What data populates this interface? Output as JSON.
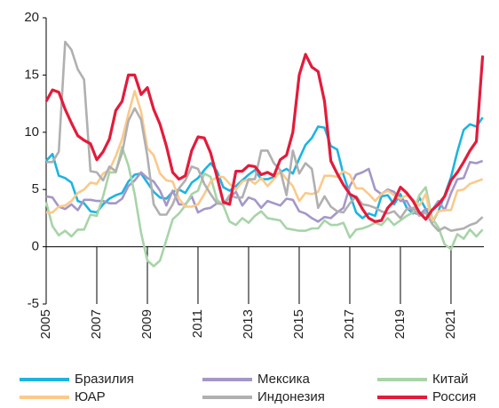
{
  "chart_data": {
    "type": "line",
    "x": [
      2005,
      2005.25,
      2005.5,
      2005.75,
      2006,
      2006.25,
      2006.5,
      2006.75,
      2007,
      2007.25,
      2007.5,
      2007.75,
      2008,
      2008.25,
      2008.5,
      2008.75,
      2009,
      2009.25,
      2009.5,
      2009.75,
      2010,
      2010.25,
      2010.5,
      2010.75,
      2011,
      2011.25,
      2011.5,
      2011.75,
      2012,
      2012.25,
      2012.5,
      2012.75,
      2013,
      2013.25,
      2013.5,
      2013.75,
      2014,
      2014.25,
      2014.5,
      2014.75,
      2015,
      2015.25,
      2015.5,
      2015.75,
      2016,
      2016.25,
      2016.5,
      2016.75,
      2017,
      2017.25,
      2017.5,
      2017.75,
      2018,
      2018.25,
      2018.5,
      2018.75,
      2019,
      2019.25,
      2019.5,
      2019.75,
      2020,
      2020.25,
      2020.5,
      2020.75,
      2021,
      2021.25,
      2021.5,
      2021.75,
      2022,
      2022.25
    ],
    "series": [
      {
        "name": "Бразилия",
        "color": "#1cb5e0",
        "values": [
          7.5,
          8.1,
          6.2,
          6.0,
          5.6,
          4.0,
          3.8,
          3.1,
          3.0,
          3.7,
          4.2,
          4.5,
          4.7,
          5.7,
          6.3,
          6.4,
          5.6,
          4.8,
          4.3,
          4.2,
          4.8,
          5.0,
          4.7,
          5.6,
          6.0,
          6.7,
          7.3,
          6.6,
          5.2,
          4.9,
          5.3,
          5.8,
          6.3,
          6.7,
          5.9,
          5.9,
          6.1,
          6.5,
          6.8,
          6.4,
          7.7,
          8.9,
          9.5,
          10.5,
          10.4,
          8.8,
          8.5,
          6.3,
          4.6,
          3.0,
          2.5,
          2.9,
          2.7,
          4.4,
          4.5,
          3.7,
          4.6,
          3.4,
          2.9,
          4.3,
          3.3,
          2.1,
          3.1,
          4.5,
          6.1,
          8.3,
          10.2,
          10.7,
          10.5,
          11.3
        ]
      },
      {
        "name": "Мексика",
        "color": "#a597c8",
        "values": [
          4.4,
          4.3,
          3.5,
          3.3,
          3.7,
          3.2,
          4.1,
          4.1,
          4.0,
          4.0,
          3.8,
          3.8,
          4.2,
          5.3,
          5.8,
          6.5,
          6.0,
          5.7,
          4.9,
          3.6,
          4.9,
          3.7,
          3.7,
          4.4,
          3.0,
          3.3,
          3.4,
          3.8,
          3.7,
          4.3,
          4.8,
          3.6,
          4.3,
          4.1,
          3.4,
          4.0,
          3.8,
          3.6,
          4.2,
          4.1,
          3.1,
          2.9,
          2.5,
          2.2,
          2.6,
          2.5,
          3.0,
          3.4,
          5.3,
          6.3,
          6.5,
          6.8,
          5.0,
          4.6,
          5.0,
          4.8,
          4.0,
          4.0,
          3.0,
          2.8,
          3.3,
          3.2,
          4.0,
          3.2,
          4.7,
          5.9,
          6.0,
          7.4,
          7.3,
          7.5
        ]
      },
      {
        "name": "Китай",
        "color": "#a8d4a8",
        "values": [
          3.9,
          1.8,
          1.0,
          1.4,
          0.9,
          1.5,
          1.5,
          2.8,
          2.7,
          4.4,
          6.5,
          6.5,
          8.7,
          7.1,
          4.6,
          1.2,
          -1.2,
          -1.7,
          -1.2,
          0.6,
          2.4,
          2.9,
          3.6,
          4.6,
          4.9,
          6.4,
          6.1,
          4.1,
          3.6,
          2.2,
          1.9,
          2.5,
          2.1,
          2.7,
          3.1,
          2.5,
          2.4,
          2.3,
          1.6,
          1.5,
          1.4,
          1.4,
          1.6,
          1.6,
          2.3,
          1.9,
          1.9,
          2.1,
          0.8,
          1.5,
          1.6,
          1.8,
          2.1,
          1.9,
          2.5,
          1.9,
          2.3,
          2.7,
          3.0,
          4.5,
          5.2,
          2.5,
          1.7,
          0.2,
          -0.2,
          1.1,
          0.7,
          1.5,
          0.9,
          1.5
        ]
      },
      {
        "name": "ЮАР",
        "color": "#fbc98a",
        "values": [
          3.0,
          3.0,
          3.5,
          3.6,
          4.0,
          4.7,
          5.0,
          5.6,
          5.5,
          6.4,
          6.7,
          7.9,
          9.4,
          11.6,
          13.6,
          11.8,
          8.6,
          8.0,
          6.4,
          5.8,
          5.7,
          4.2,
          3.5,
          3.5,
          3.7,
          4.6,
          5.7,
          6.1,
          6.1,
          5.5,
          5.0,
          5.7,
          5.9,
          5.5,
          6.0,
          5.3,
          5.9,
          6.6,
          5.9,
          5.3,
          4.0,
          4.7,
          4.6,
          4.8,
          6.2,
          6.2,
          6.1,
          6.6,
          6.3,
          5.1,
          5.1,
          4.6,
          4.0,
          4.6,
          4.9,
          4.5,
          4.2,
          4.5,
          4.1,
          3.6,
          4.6,
          2.2,
          3.1,
          3.2,
          3.2,
          4.9,
          5.0,
          5.5,
          5.7,
          5.9
        ]
      },
      {
        "name": "Индонезия",
        "color": "#b0b0b0",
        "values": [
          7.4,
          7.4,
          8.3,
          17.9,
          17.2,
          15.5,
          14.6,
          6.6,
          6.5,
          5.8,
          7.0,
          6.6,
          8.2,
          11.0,
          12.1,
          11.1,
          7.9,
          3.7,
          2.8,
          2.8,
          3.7,
          5.1,
          5.8,
          7.0,
          6.8,
          5.5,
          4.6,
          3.8,
          3.7,
          4.5,
          4.3,
          4.3,
          5.9,
          5.9,
          8.4,
          8.4,
          7.3,
          6.7,
          4.5,
          8.4,
          6.4,
          7.3,
          6.8,
          3.4,
          4.4,
          3.5,
          3.1,
          3.0,
          3.8,
          4.4,
          3.7,
          3.6,
          3.4,
          3.1,
          2.9,
          3.1,
          2.5,
          3.3,
          3.4,
          2.7,
          3.0,
          2.0,
          1.4,
          1.7,
          1.4,
          1.5,
          1.6,
          1.9,
          2.1,
          2.6
        ]
      },
      {
        "name": "Россия",
        "color": "#e31b3b",
        "values": [
          12.7,
          13.7,
          13.5,
          12.0,
          10.8,
          9.7,
          9.3,
          9.0,
          7.6,
          8.3,
          9.4,
          11.9,
          12.7,
          15.0,
          15.0,
          13.3,
          13.9,
          12.0,
          10.7,
          8.8,
          6.5,
          5.9,
          6.2,
          8.4,
          9.6,
          9.5,
          8.2,
          6.1,
          3.9,
          3.7,
          6.6,
          6.6,
          7.1,
          7.0,
          6.3,
          6.5,
          6.2,
          7.6,
          8.0,
          10.0,
          15.0,
          16.8,
          15.7,
          15.3,
          12.7,
          7.5,
          6.4,
          5.4,
          4.6,
          4.3,
          3.3,
          2.5,
          2.2,
          2.3,
          3.4,
          4.0,
          5.2,
          4.7,
          4.0,
          3.0,
          2.4,
          3.2,
          3.7,
          4.4,
          5.8,
          6.5,
          7.4,
          8.4,
          9.2,
          16.7
        ]
      }
    ],
    "xlim": [
      2005,
      2022.3
    ],
    "xticks": [
      2005,
      2007,
      2009,
      2011,
      2013,
      2015,
      2017,
      2019,
      2021
    ],
    "ylim": [
      -5,
      20
    ],
    "yticks": [
      20,
      15,
      10,
      5,
      0,
      -5
    ]
  }
}
